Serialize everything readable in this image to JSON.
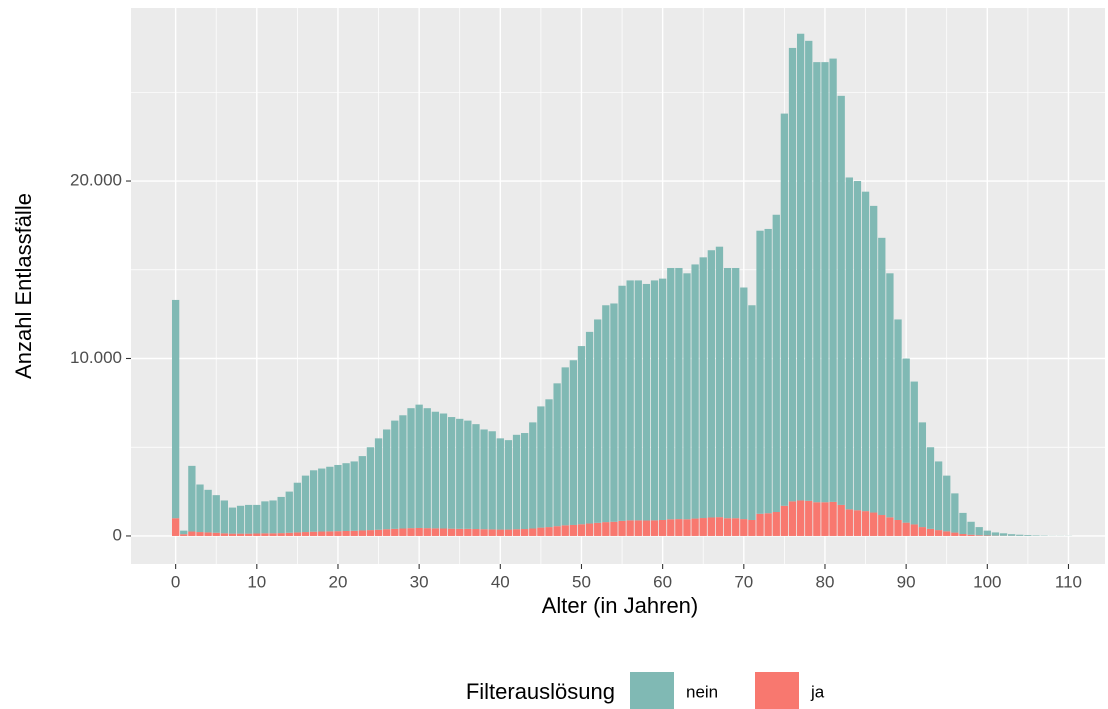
{
  "chart_data": {
    "type": "stacked_bar",
    "x_label": "Alter (in Jahren)",
    "y_label": "Anzahl Entlassfälle",
    "legend_title": "Filterauslösung",
    "legend_position": "bottom",
    "x": [
      0,
      1,
      2,
      3,
      4,
      5,
      6,
      7,
      8,
      9,
      10,
      11,
      12,
      13,
      14,
      15,
      16,
      17,
      18,
      19,
      20,
      21,
      22,
      23,
      24,
      25,
      26,
      27,
      28,
      29,
      30,
      31,
      32,
      33,
      34,
      35,
      36,
      37,
      38,
      39,
      40,
      41,
      42,
      43,
      44,
      45,
      46,
      47,
      48,
      49,
      50,
      51,
      52,
      53,
      54,
      55,
      56,
      57,
      58,
      59,
      60,
      61,
      62,
      63,
      64,
      65,
      66,
      67,
      68,
      69,
      70,
      71,
      72,
      73,
      74,
      75,
      76,
      77,
      78,
      79,
      80,
      81,
      82,
      83,
      84,
      85,
      86,
      87,
      88,
      89,
      90,
      91,
      92,
      93,
      94,
      95,
      96,
      97,
      98,
      99,
      100,
      101,
      102,
      103,
      104,
      105,
      106,
      107,
      108,
      109,
      110
    ],
    "series": [
      {
        "name": "nein",
        "color": "#80b9b4",
        "values": [
          12300,
          200,
          3700,
          2680,
          2400,
          2120,
          1850,
          1470,
          1570,
          1620,
          1610,
          1800,
          1850,
          2040,
          2320,
          2800,
          3180,
          3460,
          3550,
          3640,
          3730,
          3820,
          3910,
          4190,
          4670,
          5150,
          5620,
          6100,
          6380,
          6760,
          6950,
          6760,
          6570,
          6480,
          6290,
          6200,
          6100,
          5910,
          5620,
          5530,
          5140,
          5040,
          5320,
          5410,
          5980,
          6830,
          7200,
          8050,
          8900,
          9280,
          10040,
          10800,
          11460,
          12220,
          12300,
          13250,
          13520,
          13520,
          13330,
          13520,
          13600,
          14160,
          14150,
          13860,
          14320,
          14690,
          15060,
          15240,
          14100,
          14100,
          13050,
          12100,
          15950,
          16020,
          16750,
          22100,
          25550,
          26300,
          25920,
          24800,
          24800,
          24980,
          23050,
          18700,
          18550,
          18000,
          17280,
          15620,
          13750,
          11300,
          9250,
          8050,
          5900,
          4600,
          3870,
          3140,
          2210,
          1190,
          730,
          460,
          275,
          185,
          140,
          92,
          65,
          46,
          28,
          19,
          9,
          9,
          9
        ]
      },
      {
        "name": "ja",
        "color": "#f8786f",
        "values": [
          1000,
          100,
          250,
          220,
          200,
          180,
          150,
          130,
          130,
          130,
          140,
          150,
          150,
          160,
          180,
          200,
          220,
          240,
          250,
          260,
          270,
          280,
          290,
          310,
          330,
          350,
          380,
          400,
          420,
          440,
          450,
          440,
          430,
          420,
          410,
          400,
          400,
          390,
          380,
          370,
          360,
          360,
          380,
          390,
          420,
          470,
          500,
          550,
          600,
          620,
          660,
          700,
          740,
          780,
          800,
          850,
          880,
          880,
          870,
          880,
          900,
          940,
          950,
          940,
          980,
          1010,
          1040,
          1060,
          1000,
          1000,
          950,
          900,
          1250,
          1280,
          1350,
          1700,
          1950,
          2000,
          1980,
          1900,
          1900,
          1920,
          1750,
          1500,
          1450,
          1400,
          1320,
          1180,
          1050,
          900,
          750,
          650,
          500,
          400,
          330,
          260,
          190,
          110,
          70,
          40,
          25,
          15,
          10,
          8,
          5,
          4,
          2,
          1,
          1,
          1,
          1
        ]
      }
    ],
    "stack_order": [
      "ja",
      "nein"
    ],
    "xlim": [
      -5.5,
      114.5
    ],
    "xticks": [
      0,
      10,
      20,
      30,
      40,
      50,
      60,
      70,
      80,
      90,
      100,
      110
    ],
    "x_minor_ticks": [
      5,
      15,
      25,
      35,
      45,
      55,
      65,
      75,
      85,
      95,
      105
    ],
    "ylim": [
      -1580,
      29750
    ],
    "yticks": [
      0,
      {
        "value": 10000,
        "label": "10.000"
      },
      {
        "value": 20000,
        "label": "20.000"
      }
    ],
    "y_minor_ticks": [
      5000,
      15000,
      25000
    ],
    "grid": true,
    "panel_color": "#ebebeb"
  }
}
